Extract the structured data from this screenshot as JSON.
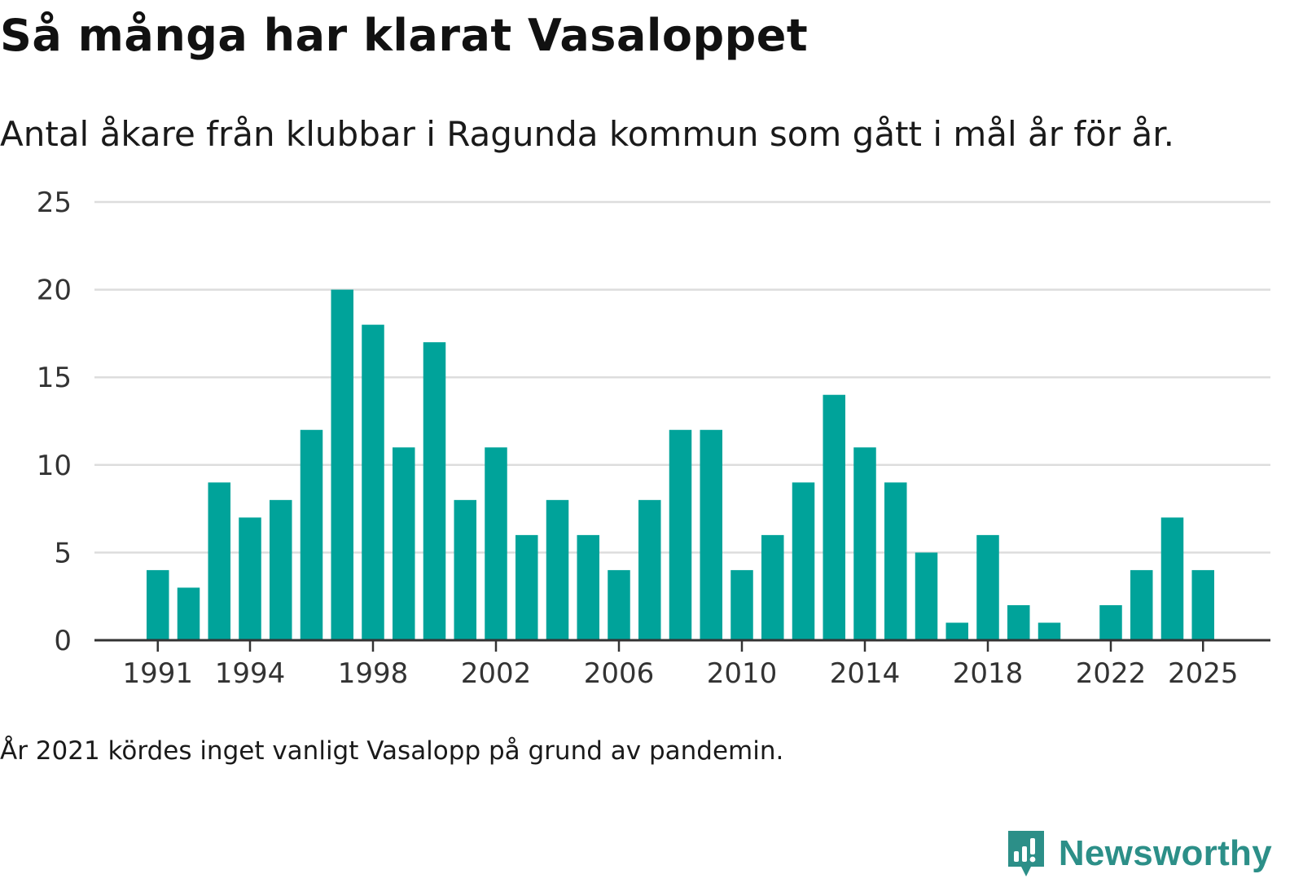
{
  "header": {
    "title": "Så många har klarat Vasaloppet",
    "subtitle": "Antal åkare från klubbar i Ragunda kommun som gått i mål år för år."
  },
  "footer": {
    "note": "År 2021 kördes inget vanligt Vasalopp på grund av pandemin.",
    "brand": "Newsworthy"
  },
  "colors": {
    "bar": "#00a39a",
    "grid": "#dddddd",
    "axis": "#333333",
    "brand": "#2c8f88"
  },
  "chart_data": {
    "type": "bar",
    "title": "Så många har klarat Vasaloppet",
    "subtitle": "Antal åkare från klubbar i Ragunda kommun som gått i mål år för år.",
    "xlabel": "",
    "ylabel": "",
    "ylim": [
      0,
      25
    ],
    "yticks": [
      0,
      5,
      10,
      15,
      20,
      25
    ],
    "xtick_labels": [
      "1991",
      "1994",
      "1998",
      "2002",
      "2006",
      "2010",
      "2014",
      "2018",
      "2022",
      "2025"
    ],
    "grid": true,
    "categories": [
      1991,
      1992,
      1993,
      1994,
      1995,
      1996,
      1997,
      1998,
      1999,
      2000,
      2001,
      2002,
      2003,
      2004,
      2005,
      2006,
      2007,
      2008,
      2009,
      2010,
      2011,
      2012,
      2013,
      2014,
      2015,
      2016,
      2017,
      2018,
      2019,
      2020,
      2021,
      2022,
      2023,
      2024,
      2025
    ],
    "values": [
      4,
      3,
      9,
      7,
      8,
      12,
      20,
      18,
      11,
      17,
      8,
      11,
      6,
      8,
      6,
      4,
      8,
      12,
      12,
      4,
      6,
      9,
      14,
      11,
      9,
      5,
      1,
      6,
      2,
      1,
      0,
      2,
      4,
      7,
      4
    ]
  }
}
